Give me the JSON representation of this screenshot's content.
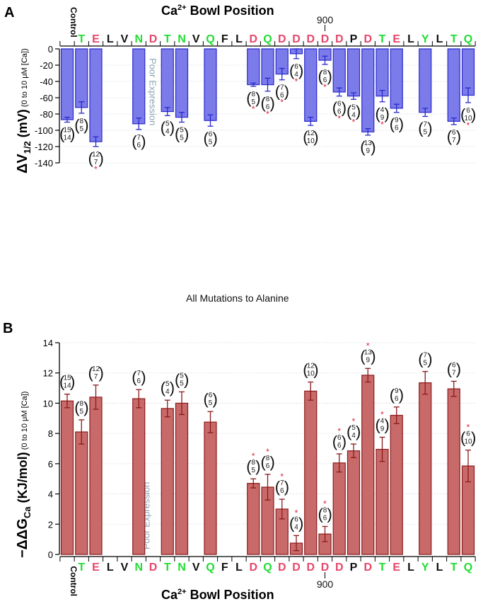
{
  "figure": {
    "middle_title": "All Mutations to Alanine",
    "residue_colors": {
      "green": "#22dd33",
      "red": "#e8456a",
      "black": "#111111"
    },
    "residues": [
      {
        "label": "Control",
        "color": "black",
        "control": true
      },
      {
        "label": "T",
        "color": "green"
      },
      {
        "label": "E",
        "color": "red"
      },
      {
        "label": "L",
        "color": "black"
      },
      {
        "label": "V",
        "color": "black"
      },
      {
        "label": "N",
        "color": "green"
      },
      {
        "label": "D",
        "color": "red"
      },
      {
        "label": "T",
        "color": "green"
      },
      {
        "label": "N",
        "color": "green"
      },
      {
        "label": "V",
        "color": "black"
      },
      {
        "label": "Q",
        "color": "green"
      },
      {
        "label": "F",
        "color": "black"
      },
      {
        "label": "L",
        "color": "black"
      },
      {
        "label": "D",
        "color": "red"
      },
      {
        "label": "Q",
        "color": "green"
      },
      {
        "label": "D",
        "color": "red"
      },
      {
        "label": "D",
        "color": "red"
      },
      {
        "label": "D",
        "color": "red"
      },
      {
        "label": "D",
        "color": "red"
      },
      {
        "label": "D",
        "color": "red"
      },
      {
        "label": "P",
        "color": "black"
      },
      {
        "label": "D",
        "color": "red"
      },
      {
        "label": "T",
        "color": "green"
      },
      {
        "label": "E",
        "color": "red"
      },
      {
        "label": "L",
        "color": "black"
      },
      {
        "label": "Y",
        "color": "green"
      },
      {
        "label": "L",
        "color": "black"
      },
      {
        "label": "T",
        "color": "green"
      },
      {
        "label": "Q",
        "color": "green"
      }
    ],
    "position_marker": {
      "label": "900",
      "residue_index": 18
    }
  },
  "chart_data": [
    {
      "type": "bar",
      "panel": "A",
      "title": "Ca²⁺ Bowl Position",
      "title_parts": {
        "main": "Ca",
        "sup": "2+",
        "rest": " Bowl Position"
      },
      "xlabel": "Ca²⁺ Bowl Position",
      "ylabel": "ΔV1/2 (mV) (0 to 10 μM [Ca])",
      "ylabel_parts": {
        "delta": "ΔV",
        "sub": "1/2",
        "unit": "(mV)",
        "cond": "(0 to 10 μM [Ca])"
      },
      "ylim": [
        -140,
        0
      ],
      "yticks": [
        0,
        -20,
        -40,
        -60,
        -80,
        -100,
        -120,
        -140
      ],
      "grid": true,
      "bar_color": "#7b7bea",
      "edge_color": "#2a2acc",
      "annotation": "Poor Expression",
      "annotation_residue_index": 6,
      "bars": [
        {
          "residue_index": 0,
          "value": -87,
          "error": 3,
          "n": [
            "15",
            "14"
          ],
          "sig": false
        },
        {
          "residue_index": 1,
          "value": -72,
          "error": 7,
          "n": [
            "8",
            "5"
          ],
          "sig": false
        },
        {
          "residue_index": 2,
          "value": -114,
          "error": 6,
          "n": [
            "12",
            "7"
          ],
          "sig": true
        },
        {
          "residue_index": 5,
          "value": -92,
          "error": 7,
          "n": [
            "7",
            "6"
          ],
          "sig": false
        },
        {
          "residue_index": 7,
          "value": -77,
          "error": 5,
          "n": [
            "5",
            "4"
          ],
          "sig": false
        },
        {
          "residue_index": 8,
          "value": -84,
          "error": 6,
          "n": [
            "5",
            "5"
          ],
          "sig": false
        },
        {
          "residue_index": 10,
          "value": -88,
          "error": 7,
          "n": [
            "6",
            "5"
          ],
          "sig": false
        },
        {
          "residue_index": 13,
          "value": -44,
          "error": 2,
          "n": [
            "8",
            "5"
          ],
          "sig": true
        },
        {
          "residue_index": 14,
          "value": -44,
          "error": 8,
          "n": [
            "8",
            "6"
          ],
          "sig": true
        },
        {
          "residue_index": 15,
          "value": -31,
          "error": 7,
          "n": [
            "7",
            "6"
          ],
          "sig": true
        },
        {
          "residue_index": 16,
          "value": -6,
          "error": 6,
          "n": [
            "6",
            "4"
          ],
          "sig": true
        },
        {
          "residue_index": 17,
          "value": -89,
          "error": 5,
          "n": [
            "12",
            "10"
          ],
          "sig": false
        },
        {
          "residue_index": 18,
          "value": -14,
          "error": 5,
          "n": [
            "8",
            "6"
          ],
          "sig": true
        },
        {
          "residue_index": 19,
          "value": -53,
          "error": 5,
          "n": [
            "6",
            "6"
          ],
          "sig": true
        },
        {
          "residue_index": 20,
          "value": -58,
          "error": 4,
          "n": [
            "5",
            "4"
          ],
          "sig": true
        },
        {
          "residue_index": 21,
          "value": -102,
          "error": 4,
          "n": [
            "13",
            "9"
          ],
          "sig": false
        },
        {
          "residue_index": 22,
          "value": -58,
          "error": 7,
          "n": [
            "4",
            "9"
          ],
          "sig": true
        },
        {
          "residue_index": 23,
          "value": -73,
          "error": 5,
          "n": [
            "9",
            "6"
          ],
          "sig": false
        },
        {
          "residue_index": 25,
          "value": -78,
          "error": 5,
          "n": [
            "7",
            "5"
          ],
          "sig": false
        },
        {
          "residue_index": 27,
          "value": -89,
          "error": 4,
          "n": [
            "6",
            "7"
          ],
          "sig": false
        },
        {
          "residue_index": 28,
          "value": -57,
          "error": 9,
          "n": [
            "6",
            "10"
          ],
          "sig": true
        }
      ]
    },
    {
      "type": "bar",
      "panel": "B",
      "title": "Ca²⁺ Bowl Position",
      "title_parts": {
        "main": "Ca",
        "sup": "2+",
        "rest": " Bowl Position"
      },
      "xlabel": "Ca²⁺ Bowl Position",
      "ylabel": "−ΔΔGCa (KJ/mol) (0 to 10 μM [Ca])",
      "ylabel_parts": {
        "delta": "−ΔΔG",
        "sub": "Ca",
        "unit": "(KJ/mol)",
        "cond": "(0 to 10 μM [Ca])"
      },
      "ylim": [
        0,
        14
      ],
      "yticks": [
        0,
        2,
        4,
        6,
        8,
        10,
        12,
        14
      ],
      "grid": true,
      "bar_color": "#c86a6a",
      "edge_color": "#8b1a1a",
      "annotation": "Poor Expression",
      "annotation_residue_index": 6,
      "bars": [
        {
          "residue_index": 0,
          "value": 10.15,
          "error": 0.45,
          "n": [
            "15",
            "14"
          ],
          "sig": false
        },
        {
          "residue_index": 1,
          "value": 8.1,
          "error": 0.8,
          "n": [
            "8",
            "5"
          ],
          "sig": false
        },
        {
          "residue_index": 2,
          "value": 10.4,
          "error": 0.8,
          "n": [
            "12",
            "7"
          ],
          "sig": false
        },
        {
          "residue_index": 5,
          "value": 10.3,
          "error": 0.6,
          "n": [
            "7",
            "6"
          ],
          "sig": false
        },
        {
          "residue_index": 7,
          "value": 9.65,
          "error": 0.55,
          "n": [
            "5",
            "4"
          ],
          "sig": false
        },
        {
          "residue_index": 8,
          "value": 10.0,
          "error": 0.75,
          "n": [
            "5",
            "5"
          ],
          "sig": false
        },
        {
          "residue_index": 10,
          "value": 8.75,
          "error": 0.7,
          "n": [
            "6",
            "5"
          ],
          "sig": false
        },
        {
          "residue_index": 13,
          "value": 4.7,
          "error": 0.3,
          "n": [
            "8",
            "5"
          ],
          "sig": true
        },
        {
          "residue_index": 14,
          "value": 4.45,
          "error": 0.85,
          "n": [
            "8",
            "6"
          ],
          "sig": true
        },
        {
          "residue_index": 15,
          "value": 3.0,
          "error": 0.65,
          "n": [
            "7",
            "6"
          ],
          "sig": true
        },
        {
          "residue_index": 16,
          "value": 0.75,
          "error": 0.5,
          "n": [
            "6",
            "4"
          ],
          "sig": true
        },
        {
          "residue_index": 17,
          "value": 10.8,
          "error": 0.6,
          "n": [
            "12",
            "10"
          ],
          "sig": false
        },
        {
          "residue_index": 18,
          "value": 1.35,
          "error": 0.5,
          "n": [
            "8",
            "6"
          ],
          "sig": true
        },
        {
          "residue_index": 19,
          "value": 6.05,
          "error": 0.6,
          "n": [
            "6",
            "6"
          ],
          "sig": true
        },
        {
          "residue_index": 20,
          "value": 6.85,
          "error": 0.45,
          "n": [
            "5",
            "4"
          ],
          "sig": true
        },
        {
          "residue_index": 21,
          "value": 11.85,
          "error": 0.45,
          "n": [
            "13",
            "9"
          ],
          "sig": true
        },
        {
          "residue_index": 22,
          "value": 6.95,
          "error": 0.8,
          "n": [
            "4",
            "9"
          ],
          "sig": true
        },
        {
          "residue_index": 23,
          "value": 9.2,
          "error": 0.55,
          "n": [
            "9",
            "6"
          ],
          "sig": false
        },
        {
          "residue_index": 25,
          "value": 11.35,
          "error": 0.75,
          "n": [
            "7",
            "5"
          ],
          "sig": false
        },
        {
          "residue_index": 27,
          "value": 10.95,
          "error": 0.5,
          "n": [
            "6",
            "7"
          ],
          "sig": false
        },
        {
          "residue_index": 28,
          "value": 5.85,
          "error": 1.05,
          "n": [
            "6",
            "10"
          ],
          "sig": true
        }
      ]
    }
  ]
}
